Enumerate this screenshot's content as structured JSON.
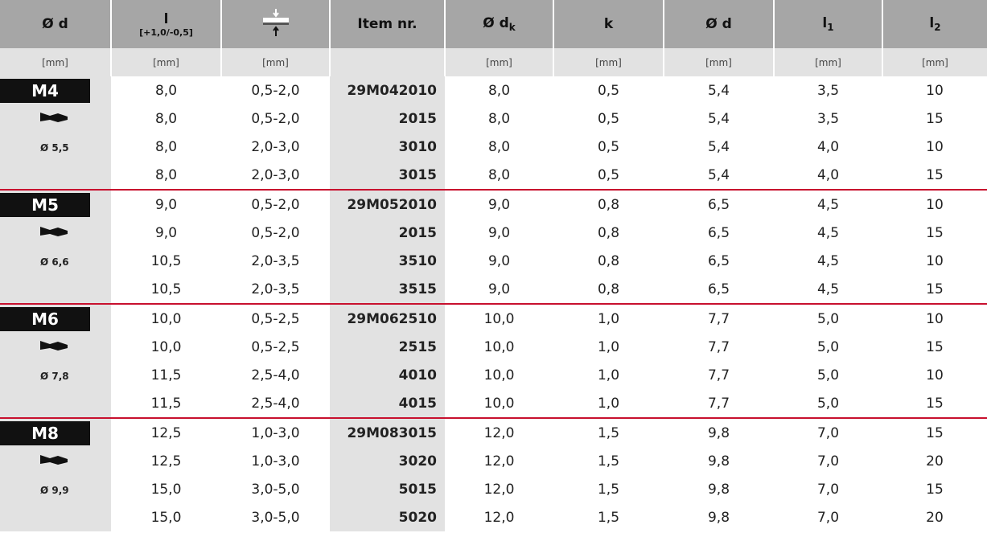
{
  "table": {
    "header": [
      {
        "main": "Ø d"
      },
      {
        "main": "l",
        "sub": "[+1,0/-0,5]"
      },
      {
        "icon": "grip-range"
      },
      {
        "main": "Item nr."
      },
      {
        "main": "Ø d",
        "sub": "k"
      },
      {
        "main": "k"
      },
      {
        "main": "Ø d"
      },
      {
        "main": "l",
        "sub": "1"
      },
      {
        "main": "l",
        "sub": "2"
      }
    ],
    "units": [
      "[mm]",
      "[mm]",
      "[mm]",
      null,
      "[mm]",
      "[mm]",
      "[mm]",
      "[mm]",
      "[mm]"
    ],
    "groups": [
      {
        "size": "M4",
        "drill": "Ø 5,5",
        "rows": [
          [
            "8,0",
            "0,5-2,0",
            "29M042010",
            "8,0",
            "0,5",
            "5,4",
            "3,5",
            "10"
          ],
          [
            "8,0",
            "0,5-2,0",
            "2015",
            "8,0",
            "0,5",
            "5,4",
            "3,5",
            "15"
          ],
          [
            "8,0",
            "2,0-3,0",
            "3010",
            "8,0",
            "0,5",
            "5,4",
            "4,0",
            "10"
          ],
          [
            "8,0",
            "2,0-3,0",
            "3015",
            "8,0",
            "0,5",
            "5,4",
            "4,0",
            "15"
          ]
        ]
      },
      {
        "size": "M5",
        "drill": "Ø 6,6",
        "rows": [
          [
            "9,0",
            "0,5-2,0",
            "29M052010",
            "9,0",
            "0,8",
            "6,5",
            "4,5",
            "10"
          ],
          [
            "9,0",
            "0,5-2,0",
            "2015",
            "9,0",
            "0,8",
            "6,5",
            "4,5",
            "15"
          ],
          [
            "10,5",
            "2,0-3,5",
            "3510",
            "9,0",
            "0,8",
            "6,5",
            "4,5",
            "10"
          ],
          [
            "10,5",
            "2,0-3,5",
            "3515",
            "9,0",
            "0,8",
            "6,5",
            "4,5",
            "15"
          ]
        ]
      },
      {
        "size": "M6",
        "drill": "Ø 7,8",
        "rows": [
          [
            "10,0",
            "0,5-2,5",
            "29M062510",
            "10,0",
            "1,0",
            "7,7",
            "5,0",
            "10"
          ],
          [
            "10,0",
            "0,5-2,5",
            "2515",
            "10,0",
            "1,0",
            "7,7",
            "5,0",
            "15"
          ],
          [
            "11,5",
            "2,5-4,0",
            "4010",
            "10,0",
            "1,0",
            "7,7",
            "5,0",
            "10"
          ],
          [
            "11,5",
            "2,5-4,0",
            "4015",
            "10,0",
            "1,0",
            "7,7",
            "5,0",
            "15"
          ]
        ]
      },
      {
        "size": "M8",
        "drill": "Ø 9,9",
        "rows": [
          [
            "12,5",
            "1,0-3,0",
            "29M083015",
            "12,0",
            "1,5",
            "9,8",
            "7,0",
            "15"
          ],
          [
            "12,5",
            "1,0-3,0",
            "3020",
            "12,0",
            "1,5",
            "9,8",
            "7,0",
            "20"
          ],
          [
            "15,0",
            "3,0-5,0",
            "5015",
            "12,0",
            "1,5",
            "9,8",
            "7,0",
            "15"
          ],
          [
            "15,0",
            "3,0-5,0",
            "5020",
            "12,0",
            "1,5",
            "9,8",
            "7,0",
            "20"
          ]
        ]
      }
    ]
  }
}
